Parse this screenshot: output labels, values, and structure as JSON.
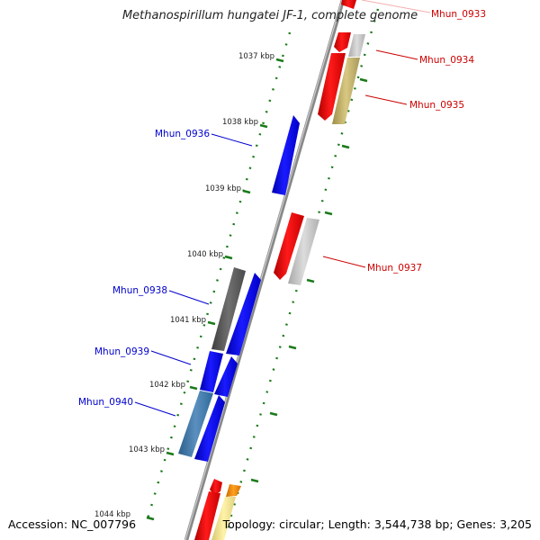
{
  "title": "Methanospirillum hungatei JF-1, complete genome",
  "footer": {
    "accession": "Accession: NC_007796",
    "summary": "Topology: circular; Length: 3,544,738 bp; Genes: 3,205"
  },
  "scale_labels": [
    "1037 kbp",
    "1038 kbp",
    "1039 kbp",
    "1040 kbp",
    "1041 kbp",
    "1042 kbp",
    "1043 kbp",
    "1044 kbp"
  ],
  "gene_labels": {
    "mhun_0933": "Mhun_0933",
    "mhun_0934": "Mhun_0934",
    "mhun_0935": "Mhun_0935",
    "mhun_0936": "Mhun_0936",
    "mhun_0937": "Mhun_0937",
    "mhun_0938": "Mhun_0938",
    "mhun_0939": "Mhun_0939",
    "mhun_0940": "Mhun_0940"
  },
  "colors": {
    "forward_label": "#cc0000",
    "reverse_label": "#0000cc",
    "scale_tick": "#1a7a1a",
    "backbone": "#808080"
  }
}
